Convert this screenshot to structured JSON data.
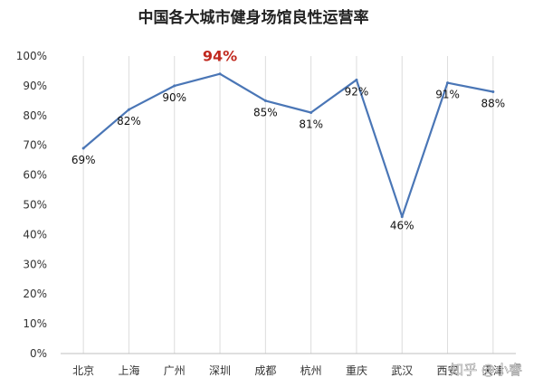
{
  "chart_data": {
    "type": "line",
    "title": "中国各大城市健身场馆良性运营率",
    "categories": [
      "北京",
      "上海",
      "广州",
      "深圳",
      "成都",
      "杭州",
      "重庆",
      "武汉",
      "西安",
      "天津"
    ],
    "values": [
      69,
      82,
      90,
      94,
      85,
      81,
      92,
      46,
      91,
      88
    ],
    "value_labels": [
      "69%",
      "82%",
      "90%",
      "94%",
      "85%",
      "81%",
      "92%",
      "46%",
      "91%",
      "88%"
    ],
    "highlight_index": 3,
    "ylim": [
      0,
      100
    ],
    "yticks": [
      "0%",
      "10%",
      "20%",
      "30%",
      "40%",
      "50%",
      "60%",
      "70%",
      "80%",
      "90%",
      "100%"
    ],
    "grid": "vertical",
    "line_color": "#4a76b6",
    "highlight_color": "#c0281e"
  },
  "watermark": "知乎 @小睿"
}
